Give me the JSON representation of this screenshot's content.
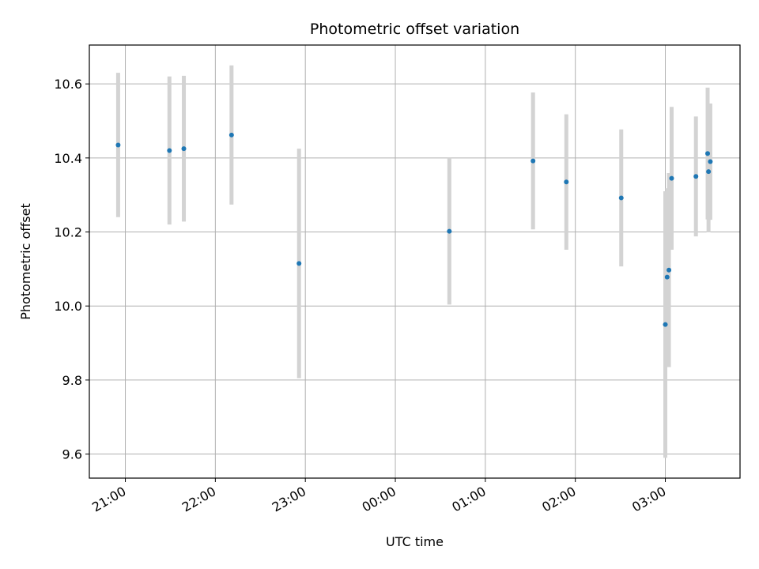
{
  "chart_data": {
    "type": "scatter",
    "title": "Photometric offset variation",
    "xlabel": "UTC time",
    "ylabel": "Photometric offset",
    "x_tick_labels": [
      "21:00",
      "22:00",
      "23:00",
      "00:00",
      "01:00",
      "02:00",
      "03:00"
    ],
    "x_tick_hours": [
      21,
      22,
      23,
      24,
      25,
      26,
      27
    ],
    "y_tick_labels": [
      "9.6",
      "9.8",
      "10.0",
      "10.2",
      "10.4",
      "10.6"
    ],
    "y_tick_values": [
      9.6,
      9.8,
      10.0,
      10.2,
      10.4,
      10.6
    ],
    "xlim": [
      20.6,
      27.83
    ],
    "ylim": [
      9.535,
      10.705
    ],
    "grid": true,
    "point_color": "#1f77b4",
    "errorbar_color": "#d3d3d3",
    "points": [
      {
        "x": 20.92,
        "y": 10.435,
        "err": 0.195
      },
      {
        "x": 21.49,
        "y": 10.42,
        "err": 0.2
      },
      {
        "x": 21.65,
        "y": 10.425,
        "err": 0.197
      },
      {
        "x": 22.18,
        "y": 10.462,
        "err": 0.188
      },
      {
        "x": 22.93,
        "y": 10.115,
        "err": 0.31
      },
      {
        "x": 24.6,
        "y": 10.202,
        "err": 0.198
      },
      {
        "x": 25.53,
        "y": 10.392,
        "err": 0.185
      },
      {
        "x": 25.9,
        "y": 10.335,
        "err": 0.183
      },
      {
        "x": 26.51,
        "y": 10.292,
        "err": 0.185
      },
      {
        "x": 27.0,
        "y": 9.95,
        "err": 0.36
      },
      {
        "x": 27.02,
        "y": 10.078,
        "err": 0.24
      },
      {
        "x": 27.04,
        "y": 10.097,
        "err": 0.262
      },
      {
        "x": 27.07,
        "y": 10.345,
        "err": 0.193
      },
      {
        "x": 27.34,
        "y": 10.35,
        "err": 0.162
      },
      {
        "x": 27.47,
        "y": 10.412,
        "err": 0.178
      },
      {
        "x": 27.48,
        "y": 10.363,
        "err": 0.164
      },
      {
        "x": 27.5,
        "y": 10.39,
        "err": 0.157
      }
    ]
  }
}
